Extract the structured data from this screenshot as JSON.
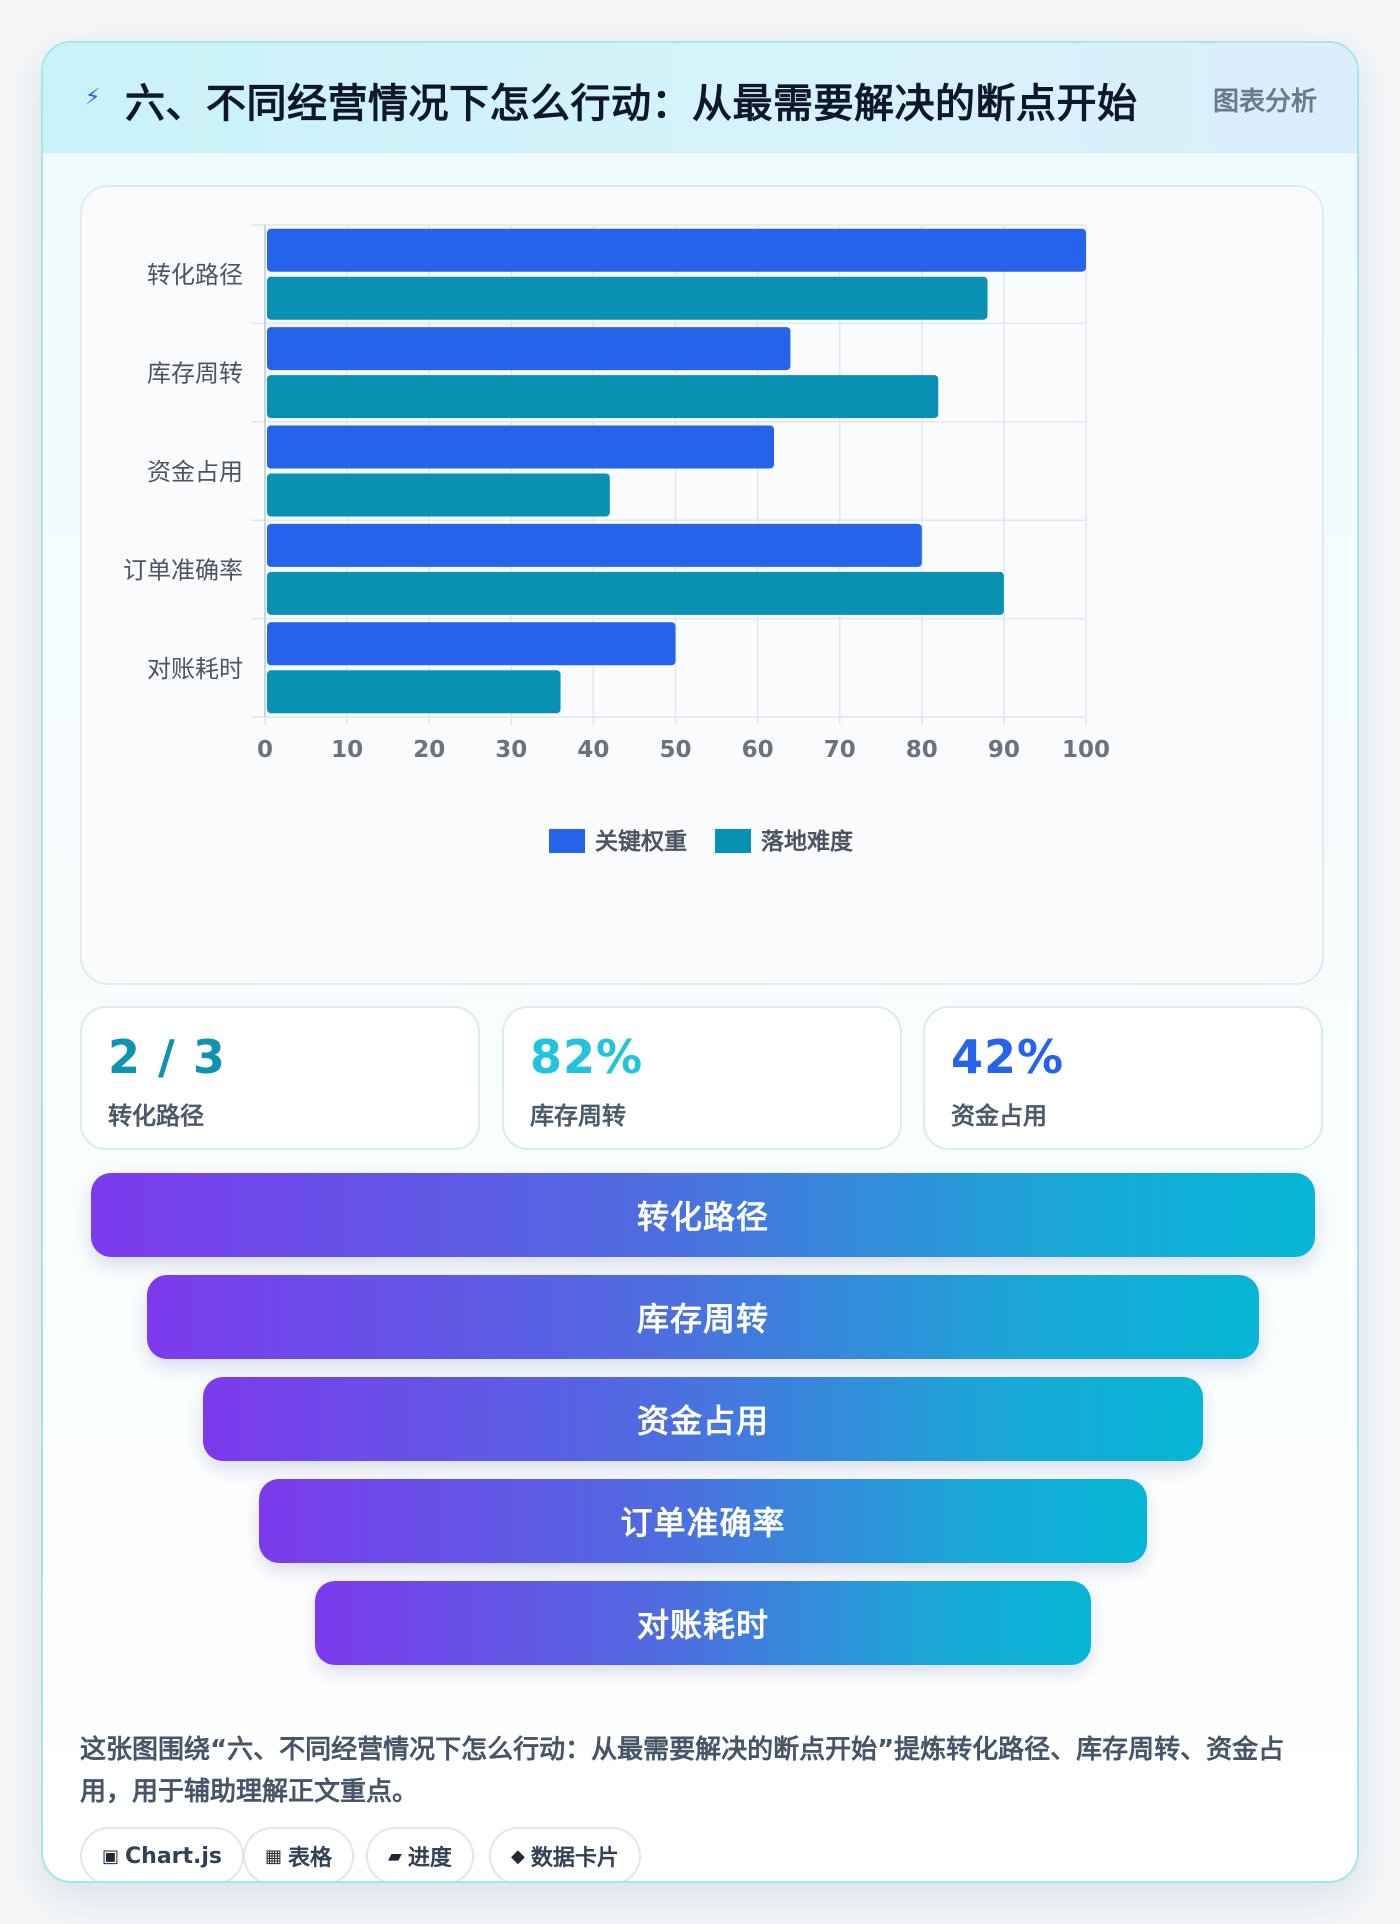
{
  "header": {
    "icon": "lightning-icon",
    "title": "六、不同经营情况下怎么行动：从最需要解决的断点开始",
    "tag": "图表分析"
  },
  "chart_data": {
    "type": "bar",
    "orientation": "horizontal",
    "categories": [
      "转化路径",
      "库存周转",
      "资金占用",
      "订单准确率",
      "对账耗时"
    ],
    "series": [
      {
        "name": "关键权重",
        "color": "#2563eb",
        "values": [
          100,
          64,
          62,
          80,
          50
        ]
      },
      {
        "name": "落地难度",
        "color": "#0891b2",
        "values": [
          88,
          82,
          42,
          90,
          36
        ]
      }
    ],
    "xlim": [
      0,
      100
    ],
    "x_ticks": [
      0,
      10,
      20,
      30,
      40,
      50,
      60,
      70,
      80,
      90,
      100
    ],
    "grid": true,
    "legend": "bottom"
  },
  "stats": [
    {
      "value": "2 / 3",
      "label": "转化路径",
      "color": "#0e93b0"
    },
    {
      "value": "82%",
      "label": "库存周转",
      "color": "#22c3dc"
    },
    {
      "value": "42%",
      "label": "资金占用",
      "color": "#2563eb"
    }
  ],
  "funnel": [
    "转化路径",
    "库存周转",
    "资金占用",
    "订单准确率",
    "对账耗时"
  ],
  "caption": "这张图围绕“六、不同经营情况下怎么行动：从最需要解决的断点开始”提炼转化路径、库存周转、资金占用，用于辅助理解正文重点。",
  "chips": [
    {
      "icon": "▣",
      "label": "Chart.js"
    },
    {
      "icon": "▦",
      "label": "表格"
    },
    {
      "icon": "▰",
      "label": "进度"
    },
    {
      "icon": "◆",
      "label": "数据卡片"
    }
  ]
}
